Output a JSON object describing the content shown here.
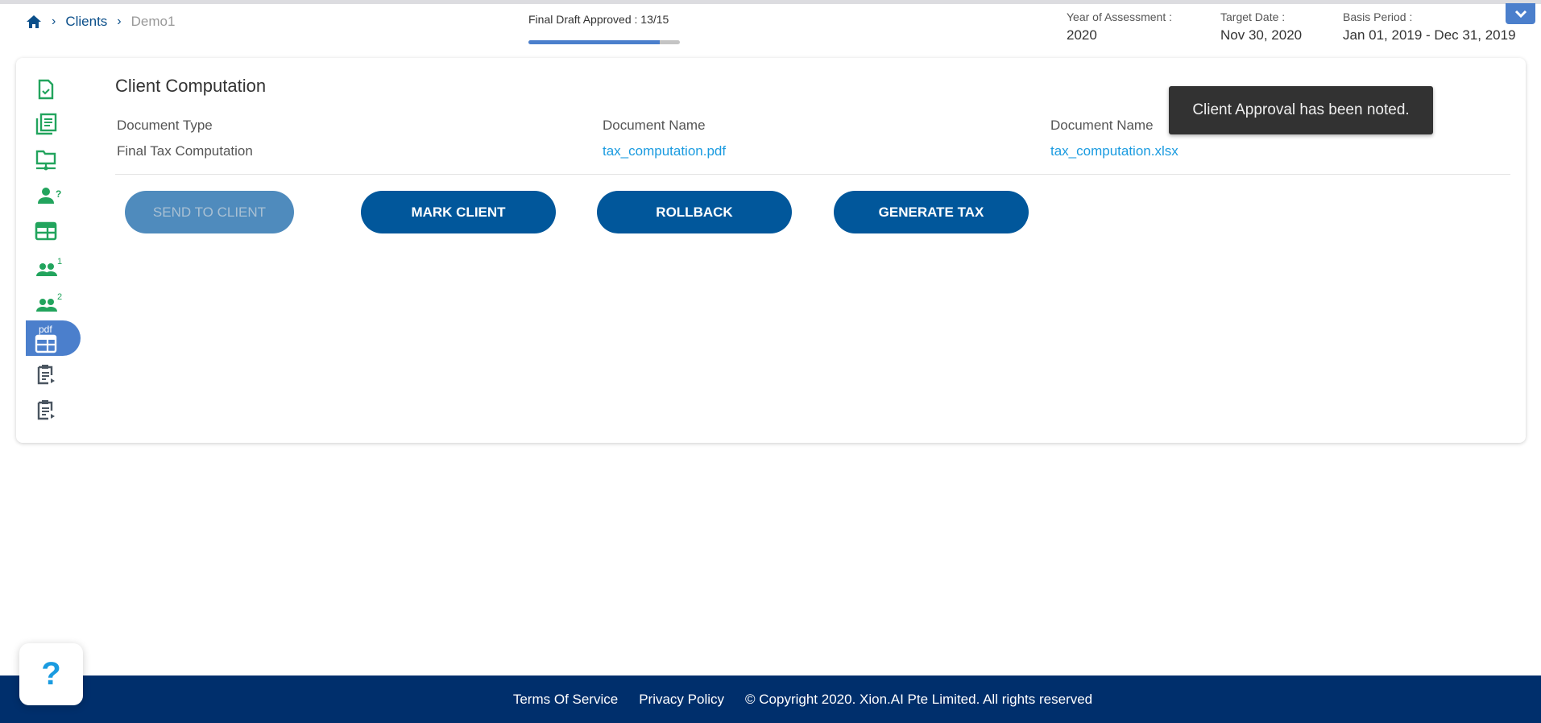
{
  "breadcrumb": {
    "items": [
      "Clients",
      "Demo1"
    ]
  },
  "progress": {
    "label": "Final Draft Approved : 13/15",
    "approved": 13,
    "total": 15,
    "fraction": 0.867,
    "color": "#4b7fcc"
  },
  "meta": {
    "year_label": "Year of Assessment :",
    "year_value": "2020",
    "target_label": "Target Date :",
    "target_value": "Nov 30, 2020",
    "basis_label": "Basis Period :",
    "basis_value": "Jan 01, 2019 - Dec 31, 2019"
  },
  "sidebar": {
    "icons": [
      "file-check-icon",
      "document-list-icon",
      "folder-network-icon",
      "user-question-icon",
      "table-icon",
      "users-1-icon",
      "users-2-icon",
      "pdf-table-icon",
      "clipboard-play-icon",
      "clipboard-play-icon"
    ],
    "active_index": 7,
    "pdf_label": "pdf",
    "badge_1": "1",
    "badge_2": "2",
    "badge_q": "?"
  },
  "main": {
    "title": "Client Computation",
    "headers": [
      "Document Type",
      "Document Name",
      "Document Name"
    ],
    "row": {
      "type": "Final Tax Computation",
      "pdf": "tax_computation.pdf",
      "xlsx": "tax_computation.xlsx"
    },
    "buttons": {
      "send": "SEND TO CLIENT",
      "mark": "MARK CLIENT",
      "rollback": "ROLLBACK",
      "generate": "GENERATE TAX"
    }
  },
  "toast": "Client Approval has been noted.",
  "help": "?",
  "footer": {
    "terms": "Terms Of Service",
    "privacy": "Privacy Policy",
    "copyright": "© Copyright 2020. Xion.AI Pte Limited. All rights reserved"
  },
  "colors": {
    "primary": "#01579b",
    "green": "#22a45d",
    "footer": "#002f6c",
    "link": "#1a9be0"
  }
}
